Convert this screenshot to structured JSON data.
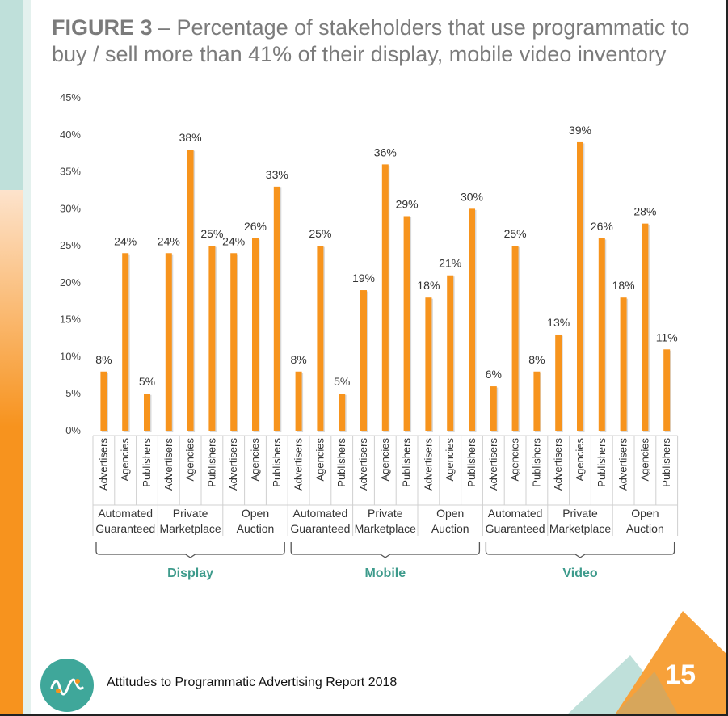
{
  "title": {
    "prefix": "FIGURE 3",
    "text": " – Percentage of stakeholders that use programmatic to buy / sell more than 41% of their display, mobile video inventory"
  },
  "footer": {
    "report": "Attitudes to Programmatic Advertising Report 2018",
    "page": "15"
  },
  "colors": {
    "bar": "#f7941d",
    "group_label": "#3e9b8c",
    "axis_text": "#444444"
  },
  "icons": {
    "logo": "waveform-logo-icon"
  },
  "chart_data": {
    "type": "bar",
    "ylim": [
      0,
      45
    ],
    "yticks": [
      "0%",
      "5%",
      "10%",
      "15%",
      "20%",
      "25%",
      "30%",
      "35%",
      "40%",
      "45%"
    ],
    "grid": false,
    "groups": [
      {
        "label": "Display",
        "subgroups": [
          {
            "label_lines": [
              "Automated",
              "Guaranteed"
            ],
            "bars": [
              {
                "category": "Advertisers",
                "value": 8,
                "label": "8%"
              },
              {
                "category": "Agencies",
                "value": 24,
                "label": "24%"
              },
              {
                "category": "Publishers",
                "value": 5,
                "label": "5%"
              }
            ]
          },
          {
            "label_lines": [
              "Private",
              "Marketplace"
            ],
            "bars": [
              {
                "category": "Advertisers",
                "value": 24,
                "label": "24%"
              },
              {
                "category": "Agencies",
                "value": 38,
                "label": "38%"
              },
              {
                "category": "Publishers",
                "value": 25,
                "label": "25%"
              }
            ]
          },
          {
            "label_lines": [
              "Open",
              "Auction"
            ],
            "bars": [
              {
                "category": "Advertisers",
                "value": 24,
                "label": "24%"
              },
              {
                "category": "Agencies",
                "value": 26,
                "label": "26%"
              },
              {
                "category": "Publishers",
                "value": 33,
                "label": "33%"
              }
            ]
          }
        ]
      },
      {
        "label": "Mobile",
        "subgroups": [
          {
            "label_lines": [
              "Automated",
              "Guaranteed"
            ],
            "bars": [
              {
                "category": "Advertisers",
                "value": 8,
                "label": "8%"
              },
              {
                "category": "Agencies",
                "value": 25,
                "label": "25%"
              },
              {
                "category": "Publishers",
                "value": 5,
                "label": "5%"
              }
            ]
          },
          {
            "label_lines": [
              "Private",
              "Marketplace"
            ],
            "bars": [
              {
                "category": "Advertisers",
                "value": 19,
                "label": "19%"
              },
              {
                "category": "Agencies",
                "value": 36,
                "label": "36%"
              },
              {
                "category": "Publishers",
                "value": 29,
                "label": "29%"
              }
            ]
          },
          {
            "label_lines": [
              "Open",
              "Auction"
            ],
            "bars": [
              {
                "category": "Advertisers",
                "value": 18,
                "label": "18%"
              },
              {
                "category": "Agencies",
                "value": 21,
                "label": "21%"
              },
              {
                "category": "Publishers",
                "value": 30,
                "label": "30%"
              }
            ]
          }
        ]
      },
      {
        "label": "Video",
        "subgroups": [
          {
            "label_lines": [
              "Automated",
              "Guaranteed"
            ],
            "bars": [
              {
                "category": "Advertisers",
                "value": 6,
                "label": "6%"
              },
              {
                "category": "Agencies",
                "value": 25,
                "label": "25%"
              },
              {
                "category": "Publishers",
                "value": 8,
                "label": "8%"
              }
            ]
          },
          {
            "label_lines": [
              "Private",
              "Marketplace"
            ],
            "bars": [
              {
                "category": "Advertisers",
                "value": 13,
                "label": "13%"
              },
              {
                "category": "Agencies",
                "value": 39,
                "label": "39%"
              },
              {
                "category": "Publishers",
                "value": 26,
                "label": "26%"
              }
            ]
          },
          {
            "label_lines": [
              "Open",
              "Auction"
            ],
            "bars": [
              {
                "category": "Advertisers",
                "value": 18,
                "label": "18%"
              },
              {
                "category": "Agencies",
                "value": 28,
                "label": "28%"
              },
              {
                "category": "Publishers",
                "value": 11,
                "label": "11%"
              }
            ]
          }
        ]
      }
    ]
  }
}
